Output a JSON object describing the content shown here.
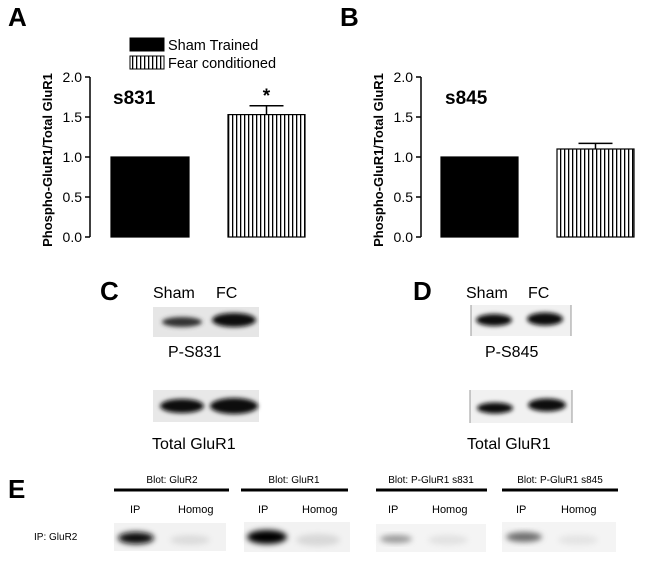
{
  "panels": {
    "A": "A",
    "B": "B",
    "C": "C",
    "D": "D",
    "E": "E"
  },
  "legend": {
    "items": [
      {
        "label": "Sham Trained",
        "fill": "#000000"
      },
      {
        "label": "Fear conditioned",
        "fill": "stripes"
      }
    ]
  },
  "chart_data": [
    {
      "type": "bar",
      "panel": "A",
      "ylabel": "Phospho-GluR1/Total GluR1",
      "annotation": "s831",
      "categories": [
        "Sham Trained",
        "Fear conditioned"
      ],
      "values": [
        1.0,
        1.53
      ],
      "errors": [
        0,
        0.11
      ],
      "significance": [
        "",
        "*"
      ],
      "ylim": [
        0,
        2.0
      ],
      "yticks": [
        "0.0",
        "0.5",
        "1.0",
        "1.5",
        "2.0"
      ]
    },
    {
      "type": "bar",
      "panel": "B",
      "ylabel": "Phospho-GluR1/Total GluR1",
      "annotation": "s845",
      "categories": [
        "Sham Trained",
        "Fear conditioned"
      ],
      "values": [
        1.0,
        1.1
      ],
      "errors": [
        0,
        0.07
      ],
      "significance": [
        "",
        ""
      ],
      "ylim": [
        0,
        2.0
      ],
      "yticks": [
        "0.0",
        "0.5",
        "1.0",
        "1.5",
        "2.0"
      ]
    }
  ],
  "blot_c": {
    "lanes": [
      "Sham",
      "FC"
    ],
    "phospho_label": "P-S831",
    "total_label": "Total GluR1"
  },
  "blot_d": {
    "lanes": [
      "Sham",
      "FC"
    ],
    "phospho_label": "P-S845",
    "total_label": "Total GluR1"
  },
  "blot_e": {
    "row_label": "IP: GluR2",
    "blots": [
      {
        "title": "Blot: GluR2",
        "lanes": [
          "IP",
          "Homog"
        ]
      },
      {
        "title": "Blot: GluR1",
        "lanes": [
          "IP",
          "Homog"
        ]
      },
      {
        "title": "Blot: P-GluR1 s831",
        "lanes": [
          "IP",
          "Homog"
        ]
      },
      {
        "title": "Blot: P-GluR1 s845",
        "lanes": [
          "IP",
          "Homog"
        ]
      }
    ]
  }
}
